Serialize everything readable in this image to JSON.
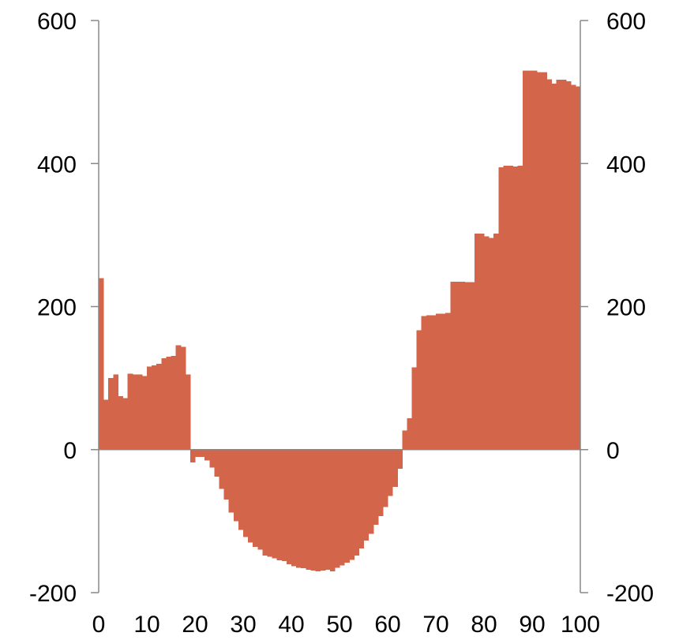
{
  "chart_data": {
    "type": "bar",
    "title": "",
    "xlabel": "",
    "ylabel": "",
    "xlim": [
      0,
      100
    ],
    "ylim": [
      -200,
      600
    ],
    "x_ticks": [
      "0",
      "10",
      "20",
      "30",
      "40",
      "50",
      "60",
      "70",
      "80",
      "90",
      "100"
    ],
    "y_ticks_left": [
      "600",
      "400",
      "200",
      "0",
      "-200"
    ],
    "y_ticks_right": [
      "600",
      "400",
      "200",
      "0",
      "-200"
    ],
    "grid": false,
    "legend": "none",
    "bar_color": "#D2654A",
    "series": [
      {
        "values": [
          240,
          70,
          100,
          105,
          75,
          72,
          106,
          105,
          105,
          103,
          116,
          118,
          120,
          128,
          130,
          131,
          146,
          144,
          105,
          -18,
          -10,
          -10,
          -15,
          -25,
          -38,
          -55,
          -70,
          -88,
          -100,
          -112,
          -122,
          -130,
          -136,
          -140,
          -148,
          -150,
          -152,
          -155,
          -156,
          -160,
          -163,
          -165,
          -166,
          -168,
          -169,
          -170,
          -169,
          -168,
          -170,
          -165,
          -162,
          -158,
          -154,
          -148,
          -138,
          -127,
          -118,
          -105,
          -93,
          -80,
          -65,
          -52,
          -27,
          27,
          44,
          115,
          167,
          187,
          188,
          188,
          190,
          190,
          191,
          235,
          235,
          235,
          234,
          234,
          302,
          302,
          298,
          296,
          302,
          395,
          397,
          397,
          396,
          397,
          530,
          530,
          530,
          528,
          528,
          518,
          512,
          517,
          517,
          515,
          510,
          508
        ]
      }
    ]
  }
}
